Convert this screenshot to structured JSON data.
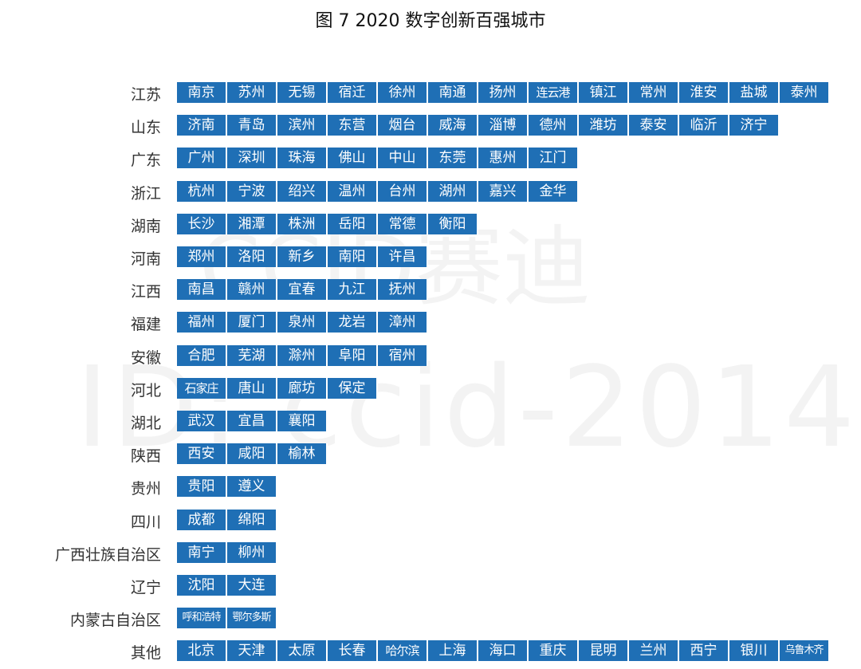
{
  "title": "图  7 2020 数字创新百强城市",
  "watermark": {
    "line1": "CCID赛迪",
    "line2": "ID: ccid-2014"
  },
  "chart_data": {
    "type": "table",
    "title": "图  7 2020 数字创新百强城市",
    "rows": [
      {
        "province": "江苏",
        "cities": [
          "南京",
          "苏州",
          "无锡",
          "宿迁",
          "徐州",
          "南通",
          "扬州",
          "连云港",
          "镇江",
          "常州",
          "淮安",
          "盐城",
          "泰州"
        ]
      },
      {
        "province": "山东",
        "cities": [
          "济南",
          "青岛",
          "滨州",
          "东营",
          "烟台",
          "威海",
          "淄博",
          "德州",
          "潍坊",
          "泰安",
          "临沂",
          "济宁"
        ]
      },
      {
        "province": "广东",
        "cities": [
          "广州",
          "深圳",
          "珠海",
          "佛山",
          "中山",
          "东莞",
          "惠州",
          "江门"
        ]
      },
      {
        "province": "浙江",
        "cities": [
          "杭州",
          "宁波",
          "绍兴",
          "温州",
          "台州",
          "湖州",
          "嘉兴",
          "金华"
        ]
      },
      {
        "province": "湖南",
        "cities": [
          "长沙",
          "湘潭",
          "株洲",
          "岳阳",
          "常德",
          "衡阳"
        ]
      },
      {
        "province": "河南",
        "cities": [
          "郑州",
          "洛阳",
          "新乡",
          "南阳",
          "许昌"
        ]
      },
      {
        "province": "江西",
        "cities": [
          "南昌",
          "赣州",
          "宜春",
          "九江",
          "抚州"
        ]
      },
      {
        "province": "福建",
        "cities": [
          "福州",
          "厦门",
          "泉州",
          "龙岩",
          "漳州"
        ]
      },
      {
        "province": "安徽",
        "cities": [
          "合肥",
          "芜湖",
          "滁州",
          "阜阳",
          "宿州"
        ]
      },
      {
        "province": "河北",
        "cities": [
          "石家庄",
          "唐山",
          "廊坊",
          "保定"
        ]
      },
      {
        "province": "湖北",
        "cities": [
          "武汉",
          "宜昌",
          "襄阳"
        ]
      },
      {
        "province": "陕西",
        "cities": [
          "西安",
          "咸阳",
          "榆林"
        ]
      },
      {
        "province": "贵州",
        "cities": [
          "贵阳",
          "遵义"
        ]
      },
      {
        "province": "四川",
        "cities": [
          "成都",
          "绵阳"
        ]
      },
      {
        "province": "广西壮族自治区",
        "cities": [
          "南宁",
          "柳州"
        ]
      },
      {
        "province": "辽宁",
        "cities": [
          "沈阳",
          "大连"
        ]
      },
      {
        "province": "内蒙古自治区",
        "cities": [
          "呼和浩特",
          "鄂尔多斯"
        ]
      },
      {
        "province": "其他",
        "cities": [
          "北京",
          "天津",
          "太原",
          "长春",
          "哈尔滨",
          "上海",
          "海口",
          "重庆",
          "昆明",
          "兰州",
          "西宁",
          "银川",
          "乌鲁木齐"
        ]
      }
    ],
    "bar_color": "#1f6fb5",
    "text_color": "#ffffff",
    "grid": false
  }
}
